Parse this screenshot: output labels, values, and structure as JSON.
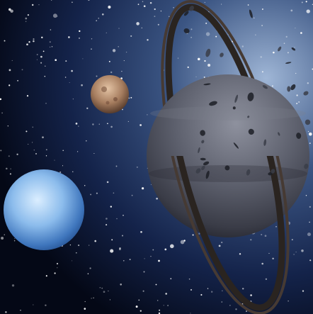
{
  "scene": {
    "colors": {
      "space_deep": "#040816",
      "space_mid": "#1a2e55",
      "space_glow": "#9fb6d6",
      "ice_giant_light": "#dbeeff",
      "ice_giant_mid": "#7fb0e6",
      "ice_giant_dark": "#1f4a8a",
      "moon_light": "#d9b593",
      "moon_dark": "#5a3d2c",
      "ringed_planet_light": "#8a8d9a",
      "ringed_planet_dark": "#2c2e38",
      "ring_color": "#2a2420"
    },
    "objects": [
      "starfield",
      "ice-giant-planet",
      "small-rocky-moon",
      "ringed-gas-giant",
      "asteroid-debris"
    ]
  }
}
